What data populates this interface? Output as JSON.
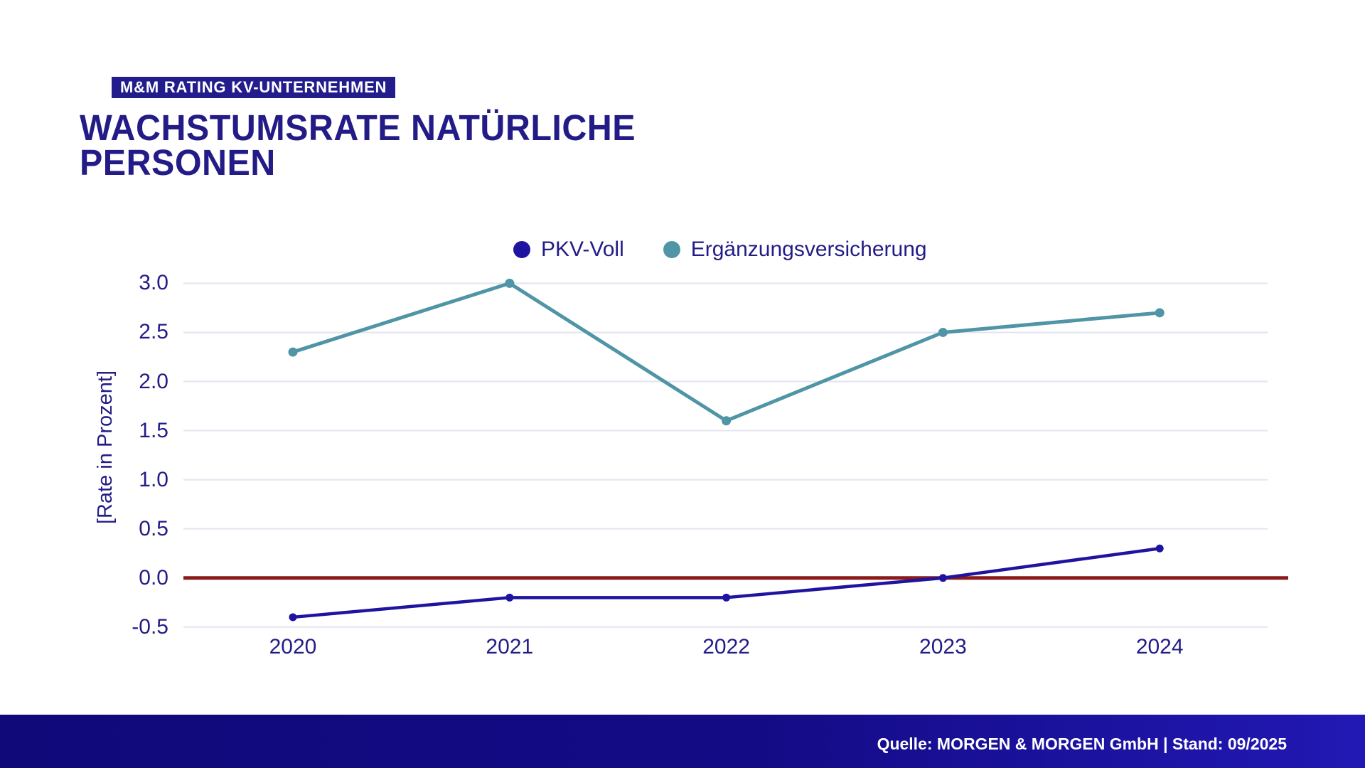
{
  "badge": {
    "label": "M&M RATING KV-UNTERNEHMEN"
  },
  "title": {
    "line1": "WACHSTUMSRATE NATÜRLICHE",
    "line2": "PERSONEN"
  },
  "chart_data": {
    "type": "line",
    "x": [
      "2020",
      "2021",
      "2022",
      "2023",
      "2024"
    ],
    "series": [
      {
        "name": "PKV-Voll",
        "color": "#1f14a0",
        "values": [
          -0.4,
          -0.2,
          -0.2,
          0.0,
          0.3
        ]
      },
      {
        "name": "Ergänzungsversicherung",
        "color": "#4f95a6",
        "values": [
          2.3,
          3.0,
          1.6,
          2.5,
          2.7
        ]
      }
    ],
    "ylabel": "[Rate in Prozent]",
    "yticks": [
      3.0,
      2.5,
      2.0,
      1.5,
      1.0,
      0.5,
      0.0,
      -0.5
    ],
    "ylim": [
      -0.5,
      3.0
    ],
    "grid": true,
    "grid_color": "#e4e4f0",
    "zero_line": {
      "value": 0.0,
      "color": "#8b1b1b"
    },
    "tick_color": "#231c87",
    "legend_position": "top-center"
  },
  "footer": {
    "text": "Quelle: MORGEN & MORGEN GmbH | Stand: 09/2025"
  },
  "theme": {
    "accent_navy": "#231c87",
    "background": "#ffffff",
    "badge_background": "#231d8c",
    "footer_text_color": "#ffffff"
  }
}
